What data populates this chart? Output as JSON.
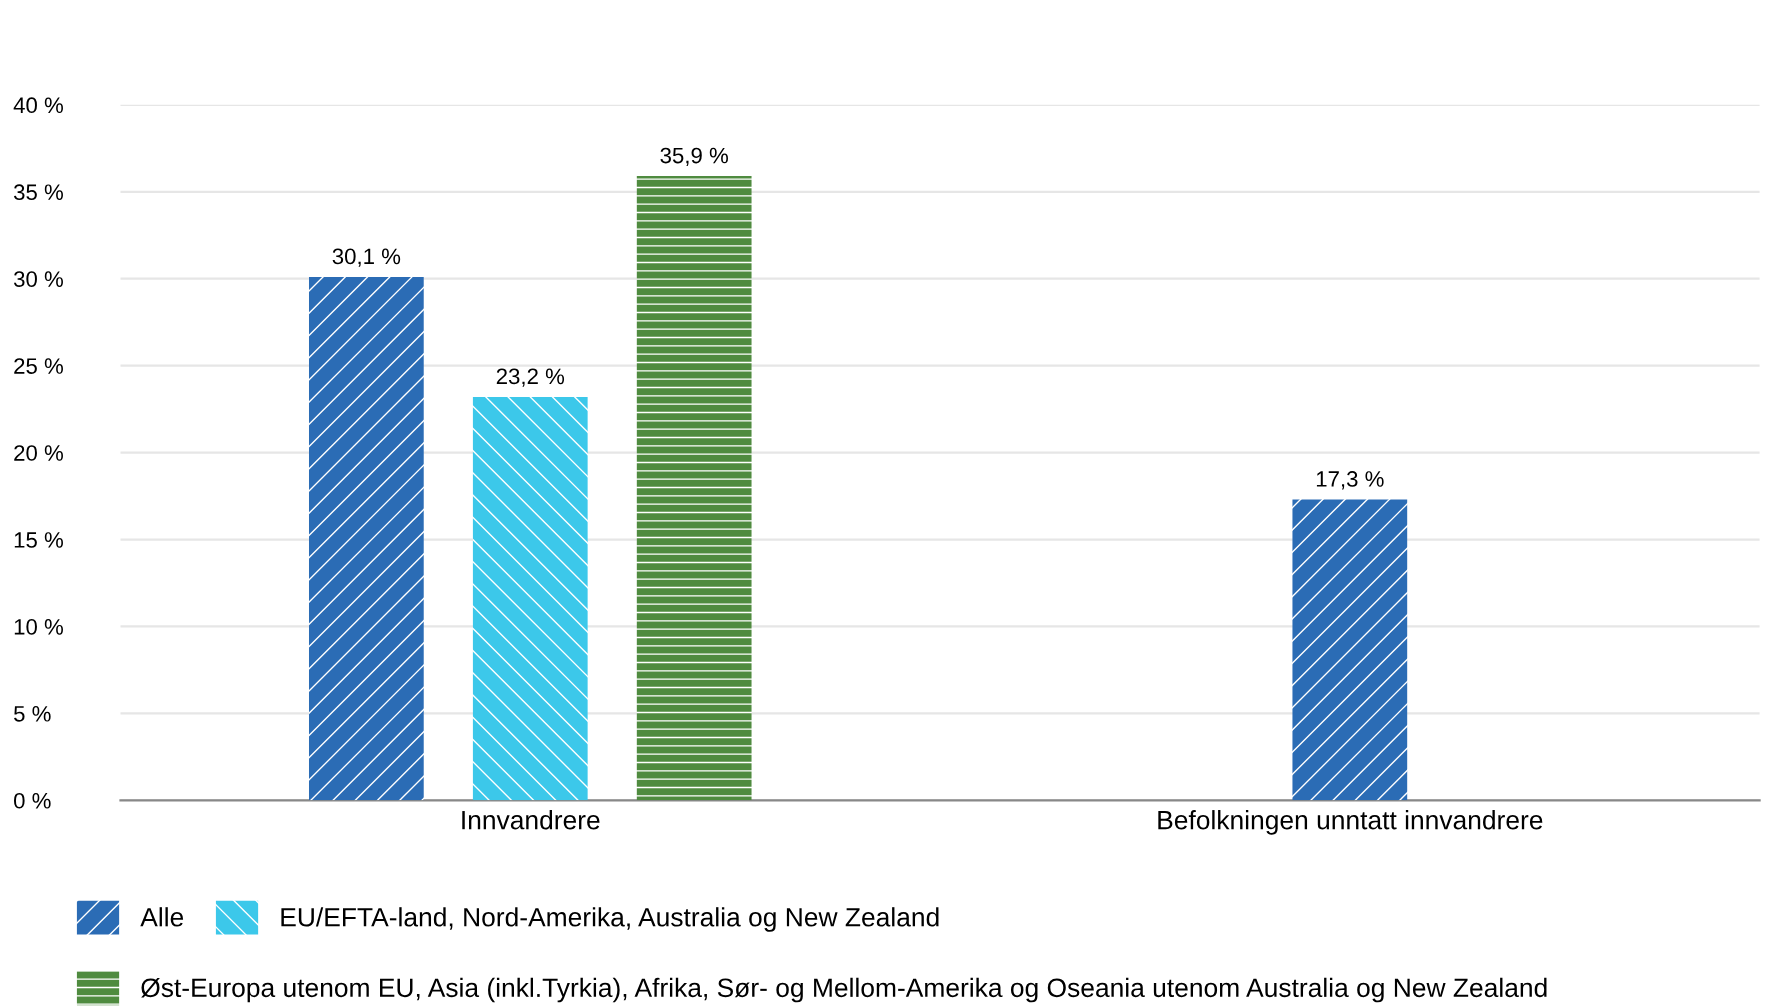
{
  "chart_data": {
    "type": "bar",
    "categories": [
      "Innvandrere",
      "Befolkningen unntatt innvandrere"
    ],
    "series": [
      {
        "name": "Alle",
        "color": "#2b6cb5",
        "values": [
          30.1,
          17.3
        ],
        "value_labels": [
          "30,1 %",
          "17,3 %"
        ]
      },
      {
        "name": "EU/EFTA-land, Nord-Amerika, Australia og New Zealand",
        "color": "#3cc8ea",
        "values": [
          23.2,
          null
        ],
        "value_labels": [
          "23,2 %",
          null
        ]
      },
      {
        "name": "Øst-Europa utenom EU, Asia (inkl.Tyrkia), Afrika, Sør- og Mellom-Amerika og Oseania utenom Australia og New Zealand",
        "color": "#4f8b3f",
        "values": [
          35.9,
          null
        ],
        "value_labels": [
          "35,9 %",
          null
        ]
      }
    ],
    "ylim": [
      0,
      40
    ],
    "yticks": [
      {
        "value": 0,
        "label": "0 %"
      },
      {
        "value": 5,
        "label": "5 %"
      },
      {
        "value": 10,
        "label": "10 %"
      },
      {
        "value": 15,
        "label": "15 %"
      },
      {
        "value": 20,
        "label": "20 %"
      },
      {
        "value": 25,
        "label": "25 %"
      },
      {
        "value": 30,
        "label": "30 %"
      },
      {
        "value": 35,
        "label": "35 %"
      },
      {
        "value": 40,
        "label": "40 %"
      }
    ],
    "grid": "y",
    "legend": "bottom"
  }
}
